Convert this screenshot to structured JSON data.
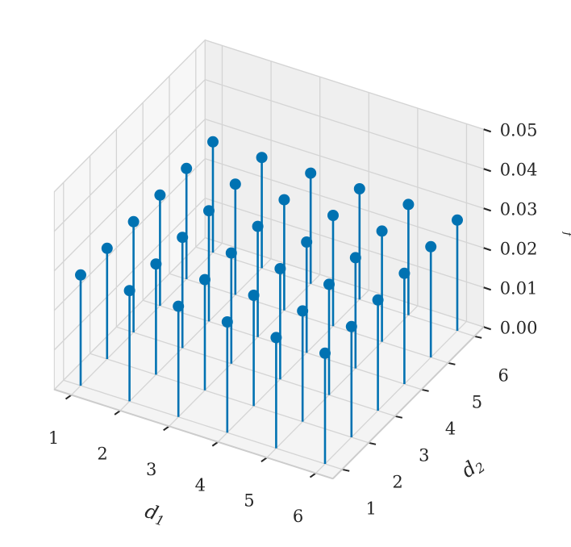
{
  "chart_data": {
    "type": "stem3d",
    "xlabel": "d",
    "xlabel_sub": "1",
    "ylabel": "d",
    "ylabel_sub": "2",
    "zlabel": "f",
    "color": "#0072b2",
    "x": [
      1,
      1,
      1,
      1,
      1,
      1,
      2,
      2,
      2,
      2,
      2,
      2,
      3,
      3,
      3,
      3,
      3,
      3,
      4,
      4,
      4,
      4,
      4,
      4,
      5,
      5,
      5,
      5,
      5,
      5,
      6,
      6,
      6,
      6,
      6,
      6
    ],
    "y": [
      1,
      2,
      3,
      4,
      5,
      6,
      1,
      2,
      3,
      4,
      5,
      6,
      1,
      2,
      3,
      4,
      5,
      6,
      1,
      2,
      3,
      4,
      5,
      6,
      1,
      2,
      3,
      4,
      5,
      6,
      1,
      2,
      3,
      4,
      5,
      6
    ],
    "values": [
      0.028,
      0.028,
      0.028,
      0.028,
      0.028,
      0.028,
      0.028,
      0.028,
      0.028,
      0.028,
      0.028,
      0.028,
      0.028,
      0.028,
      0.028,
      0.028,
      0.028,
      0.028,
      0.028,
      0.028,
      0.028,
      0.028,
      0.028,
      0.028,
      0.028,
      0.028,
      0.028,
      0.028,
      0.028,
      0.028,
      0.028,
      0.028,
      0.028,
      0.028,
      0.028,
      0.028
    ],
    "xlim": [
      0.65,
      6.35
    ],
    "ylim": [
      0.65,
      6.35
    ],
    "zlim": [
      0,
      0.05
    ],
    "xticks": [
      1,
      2,
      3,
      4,
      5,
      6
    ],
    "yticks": [
      1,
      2,
      3,
      4,
      5,
      6
    ],
    "zticks": [
      {
        "value": 0,
        "label": "0.00"
      },
      {
        "value": 0.01,
        "label": "0.01"
      },
      {
        "value": 0.02,
        "label": "0.02"
      },
      {
        "value": 0.03,
        "label": "0.03"
      },
      {
        "value": 0.04,
        "label": "0.04"
      },
      {
        "value": 0.05,
        "label": "0.05"
      }
    ],
    "grid": true
  }
}
